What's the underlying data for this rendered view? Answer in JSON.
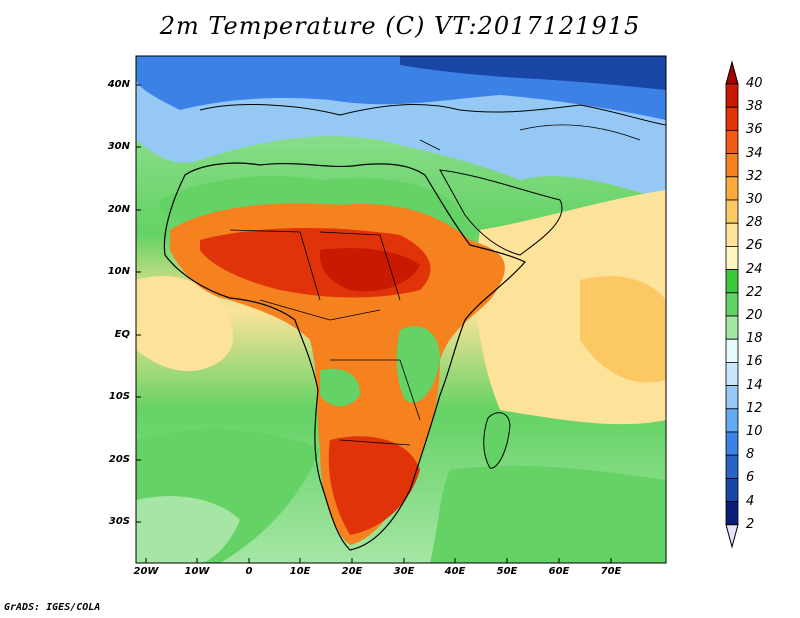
{
  "title": "2m Temperature (C) VT:2017121915",
  "credit": "GrADS: IGES/COLA",
  "map": {
    "lat_labels": [
      "40N",
      "30N",
      "20N",
      "10N",
      "EQ",
      "10S",
      "20S",
      "30S"
    ],
    "lon_labels": [
      "20W",
      "10W",
      "0",
      "10E",
      "20E",
      "30E",
      "40E",
      "50E",
      "60E",
      "70E"
    ]
  },
  "colorbar": {
    "labels": [
      "40",
      "38",
      "36",
      "34",
      "32",
      "30",
      "28",
      "26",
      "24",
      "22",
      "20",
      "18",
      "16",
      "14",
      "12",
      "10",
      "8",
      "6",
      "4",
      "2"
    ],
    "colors": [
      "#a50000",
      "#c81a00",
      "#e0330a",
      "#ef5a14",
      "#f5821e",
      "#fbaa3c",
      "#fcc864",
      "#fde39a",
      "#fff5c0",
      "#3cc83c",
      "#64d264",
      "#a5e6a5",
      "#e6fafa",
      "#c8e6fa",
      "#96c8f5",
      "#64aaf0",
      "#3c82e6",
      "#2864c8",
      "#1a46a5",
      "#0a1e78",
      "#e6e6fa"
    ]
  }
}
